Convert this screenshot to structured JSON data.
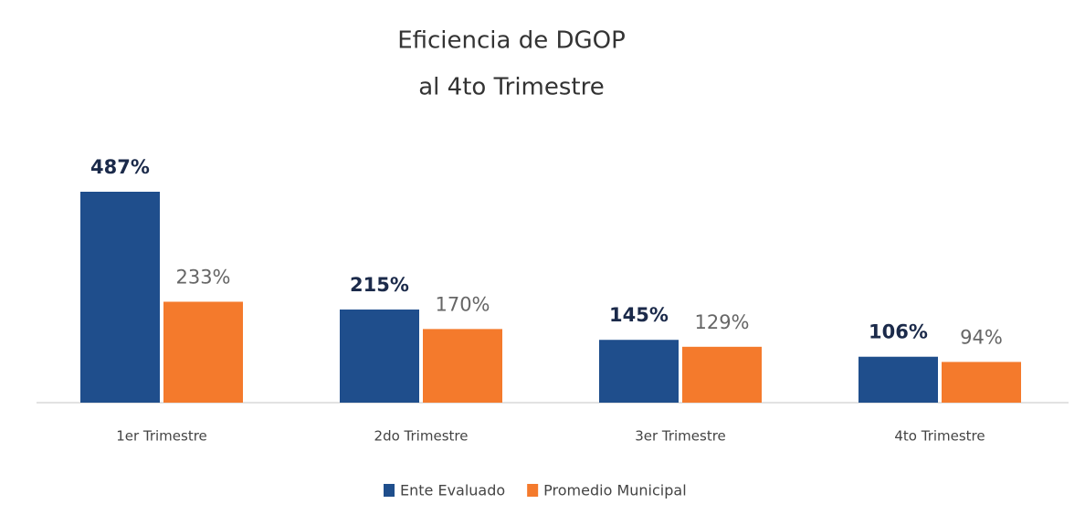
{
  "chart_data": {
    "type": "bar",
    "title": "Eficiencia  de DGOP",
    "subtitle": "al 4to Trimestre",
    "categories": [
      "1er Trimestre",
      "2do Trimestre",
      "3er Trimestre",
      "4to Trimestre"
    ],
    "series": [
      {
        "name": "Ente Evaluado",
        "color": "#1f4e8c",
        "values": [
          487,
          215,
          145,
          106
        ],
        "value_labels": [
          "487%",
          "215%",
          "145%",
          "106%"
        ]
      },
      {
        "name": "Promedio Municipal",
        "color": "#f47a2c",
        "values": [
          233,
          170,
          129,
          94
        ],
        "value_labels": [
          "233%",
          "170%",
          "129%",
          "94%"
        ]
      }
    ],
    "legend": "bottom"
  }
}
